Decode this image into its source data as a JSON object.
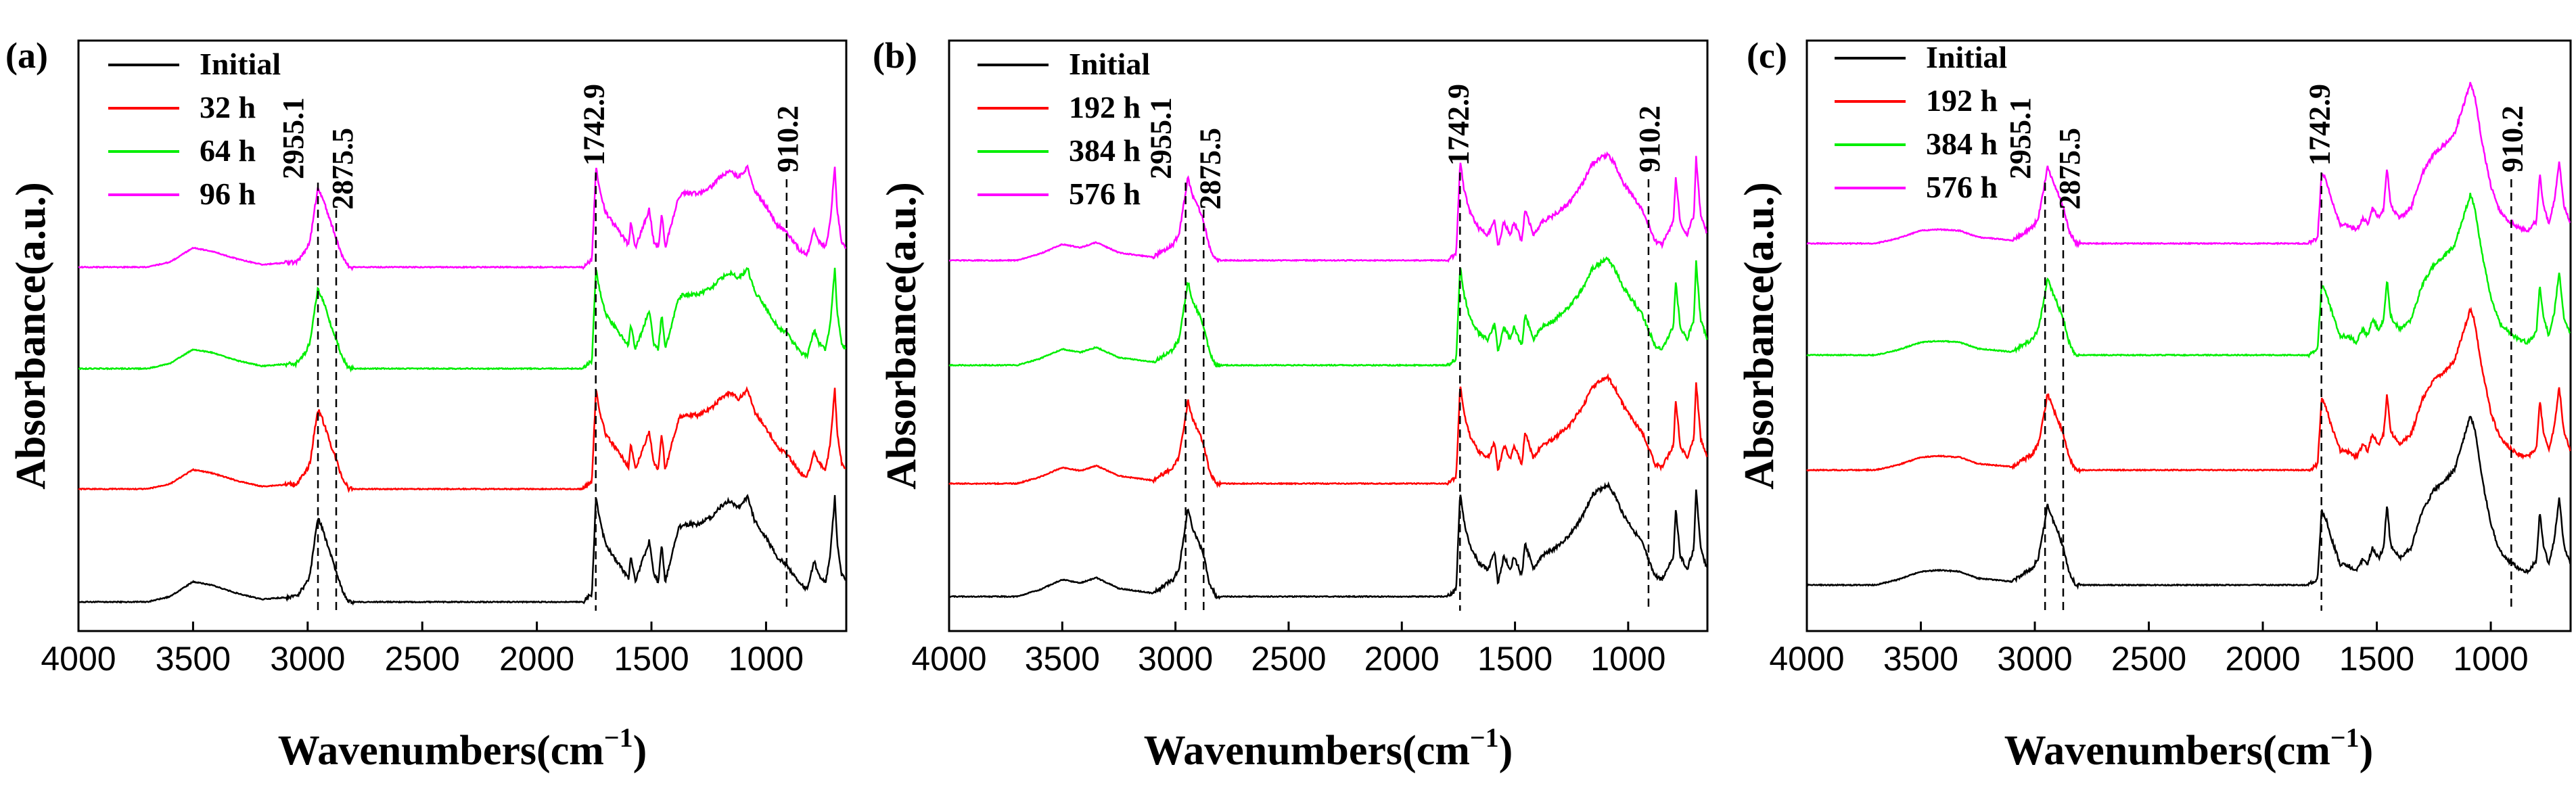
{
  "chart_data": [
    {
      "panel": "(a)",
      "type": "line",
      "xlabel": "Wavenumbers(cm",
      "xlabel_sup": "−1",
      "xlabel_close": ")",
      "ylabel": "Absorbance(a.u.)",
      "xlim": [
        4000,
        650
      ],
      "x_ticks": [
        4000,
        3500,
        3000,
        2500,
        2000,
        1500,
        1000
      ],
      "series": [
        {
          "name": "Initial",
          "color": "#000000"
        },
        {
          "name": "32 h",
          "color": "#ff0000"
        },
        {
          "name": "64 h",
          "color": "#00ee00"
        },
        {
          "name": "96 h",
          "color": "#ff00ff"
        }
      ],
      "peaks": [
        {
          "x": 2955.1,
          "label": "2955.1"
        },
        {
          "x": 2875.5,
          "label": "2875.5"
        },
        {
          "x": 1742.9,
          "label": "1742.9"
        },
        {
          "x": 910.2,
          "label": "910.2"
        }
      ]
    },
    {
      "panel": "(b)",
      "type": "line",
      "xlabel": "Wavenumbers(cm",
      "xlabel_sup": "−1",
      "xlabel_close": ")",
      "ylabel": "Absorbance(a.u.)",
      "xlim": [
        4000,
        650
      ],
      "x_ticks": [
        4000,
        3500,
        3000,
        2500,
        2000,
        1500,
        1000
      ],
      "series": [
        {
          "name": "Initial",
          "color": "#000000"
        },
        {
          "name": "192 h",
          "color": "#ff0000"
        },
        {
          "name": "384 h",
          "color": "#00ee00"
        },
        {
          "name": "576 h",
          "color": "#ff00ff"
        }
      ],
      "peaks": [
        {
          "x": 2955.1,
          "label": "2955.1"
        },
        {
          "x": 2875.5,
          "label": "2875.5"
        },
        {
          "x": 1742.9,
          "label": "1742.9"
        },
        {
          "x": 910.2,
          "label": "910.2"
        }
      ]
    },
    {
      "panel": "(c)",
      "type": "line",
      "xlabel": "Wavenumbers(cm",
      "xlabel_sup": "−1",
      "xlabel_close": ")",
      "ylabel": "Absorbance(a.u.)",
      "xlim": [
        4000,
        650
      ],
      "x_ticks": [
        4000,
        3500,
        3000,
        2500,
        2000,
        1500,
        1000
      ],
      "series": [
        {
          "name": "Initial",
          "color": "#000000"
        },
        {
          "name": "192 h",
          "color": "#ff0000"
        },
        {
          "name": "384 h",
          "color": "#00ee00"
        },
        {
          "name": "576 h",
          "color": "#ff00ff"
        }
      ],
      "peaks": [
        {
          "x": 2955.1,
          "label": "2955.1"
        },
        {
          "x": 2875.5,
          "label": "2875.5"
        },
        {
          "x": 1742.9,
          "label": "1742.9"
        },
        {
          "x": 910.2,
          "label": "910.2"
        }
      ]
    }
  ]
}
